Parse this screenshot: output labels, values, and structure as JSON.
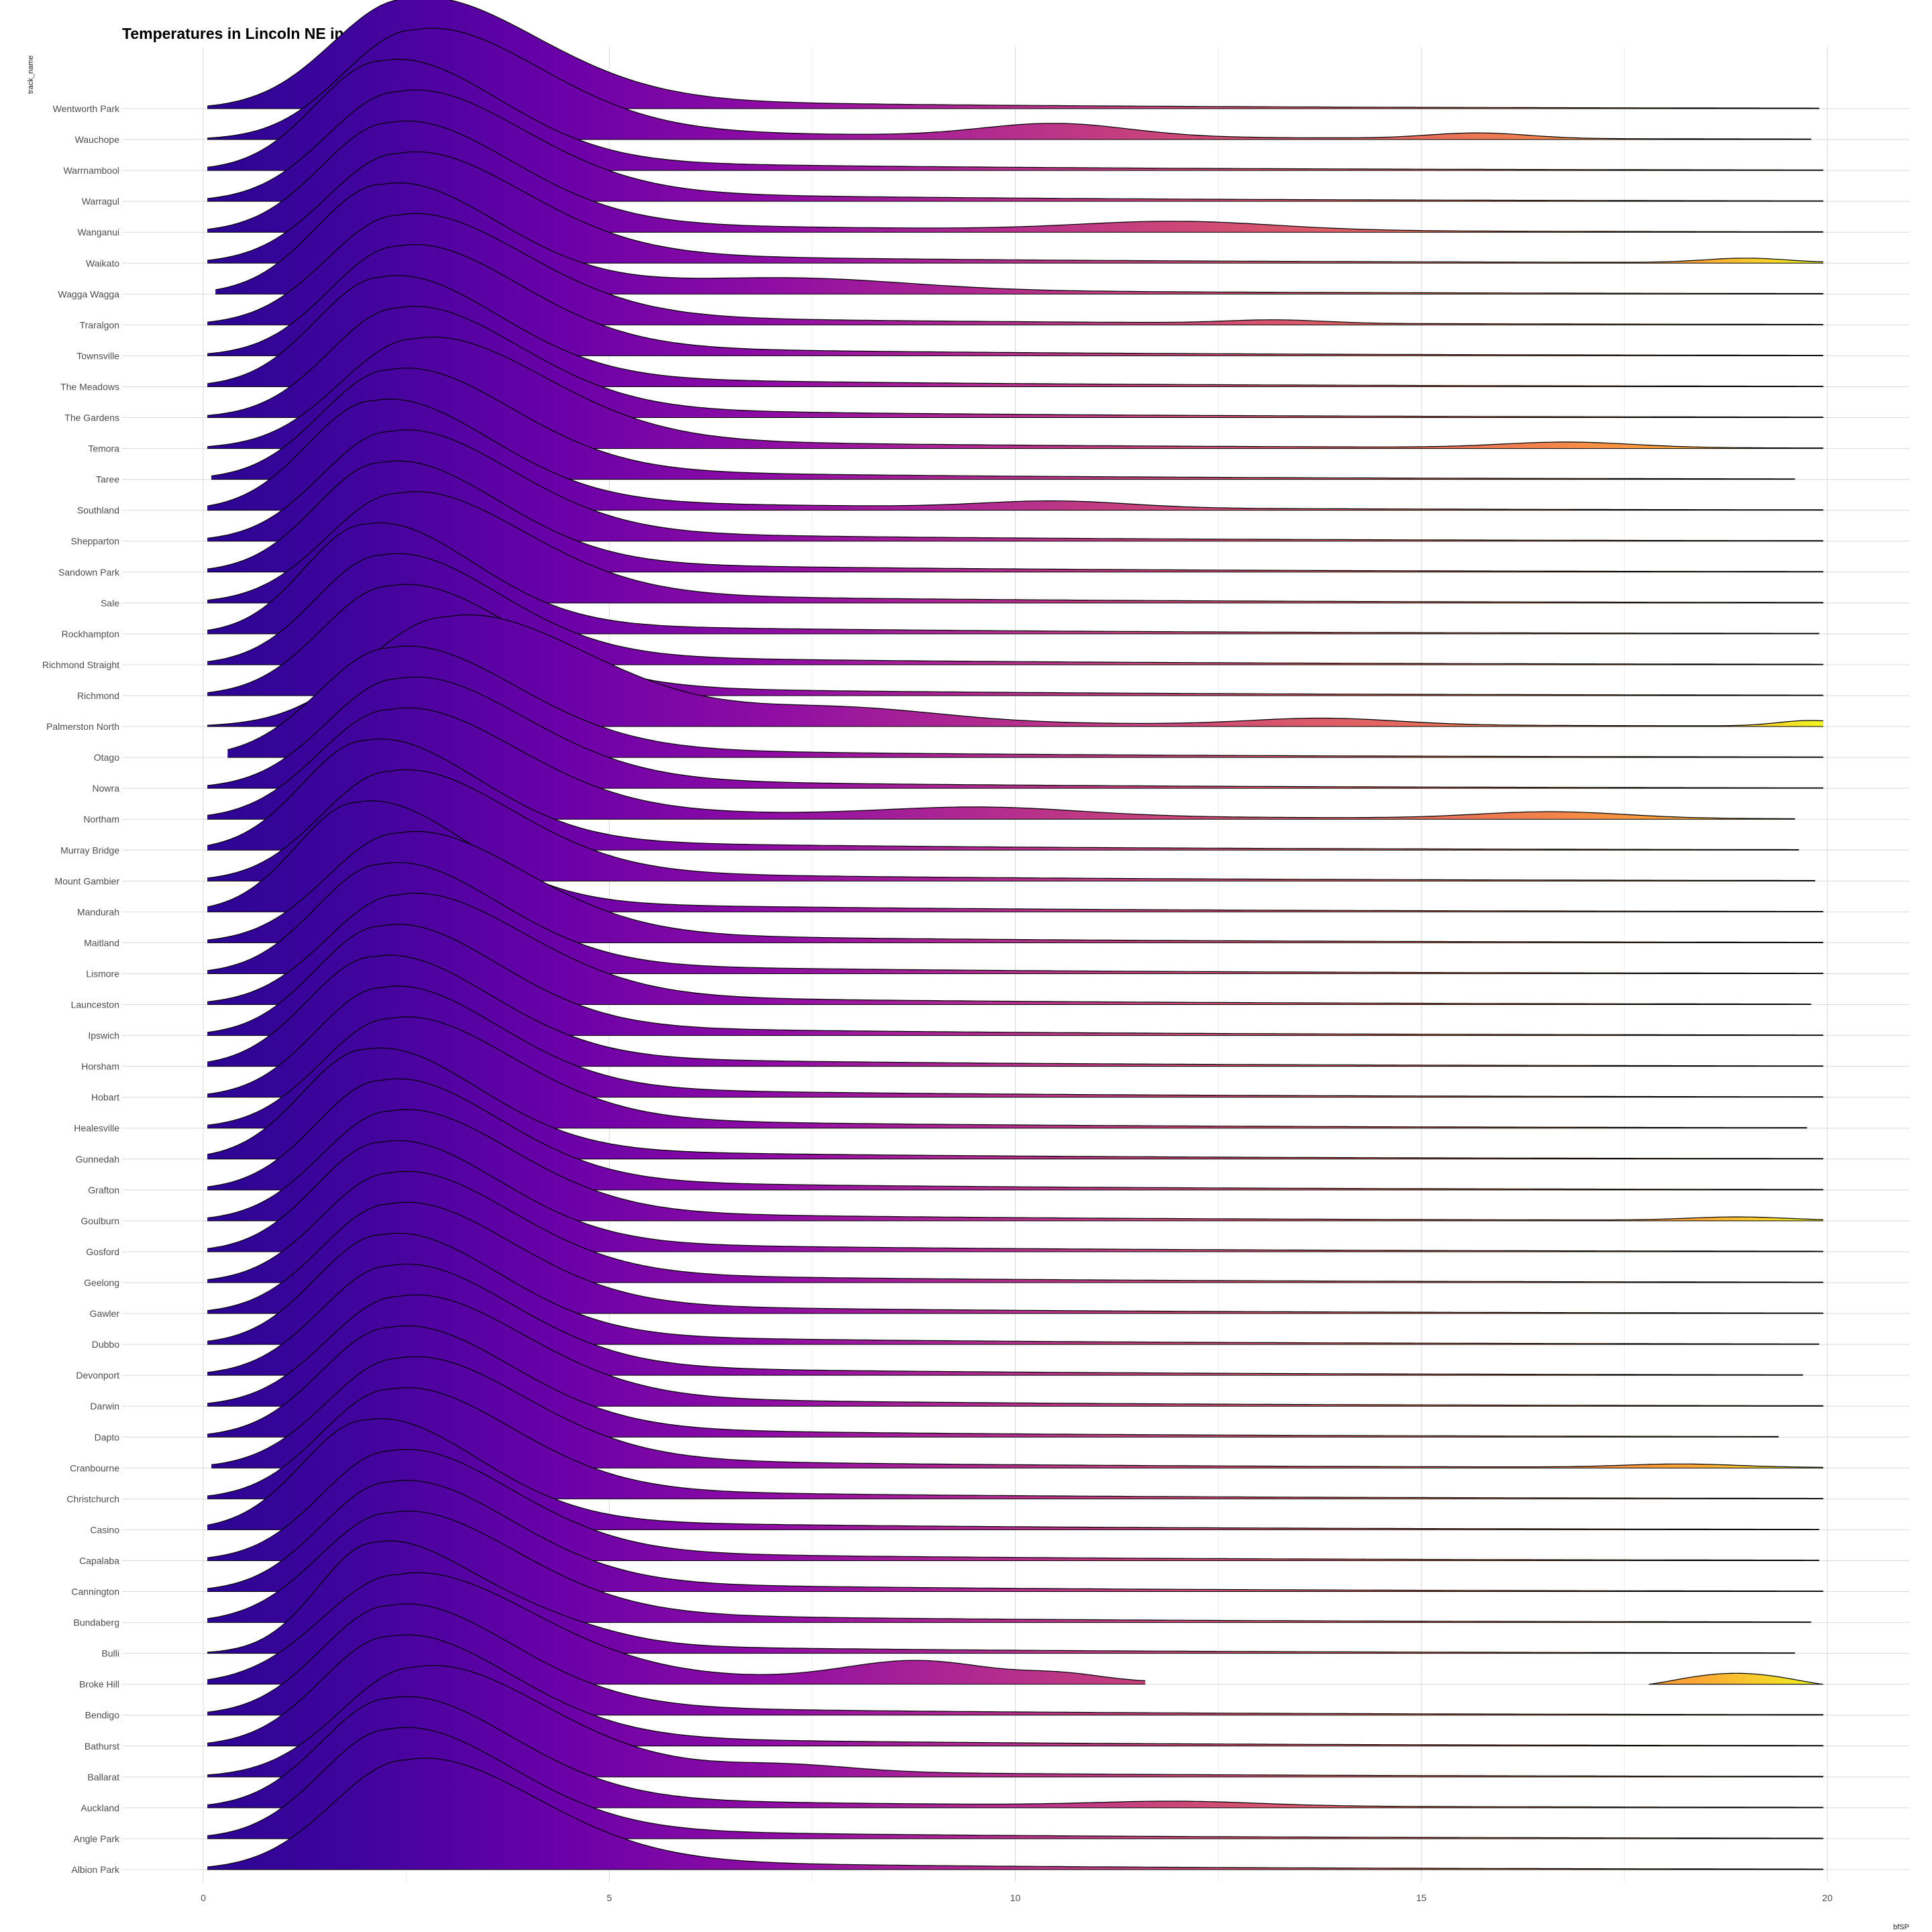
{
  "chart_data": {
    "type": "ridgeline",
    "title": "Temperatures in Lincoln NE in 2016",
    "xlabel": "bfSP",
    "ylabel": "track_name",
    "xlim": [
      0,
      20
    ],
    "xticks": [
      0,
      5,
      10,
      15,
      20
    ],
    "fill": "gradient along x (plasma colormap)",
    "colors": {
      "low": "#2b0593",
      "mid1": "#6a00a8",
      "mid2": "#b12a90",
      "mid3": "#e16462",
      "high": "#fca636",
      "end": "#f0f921"
    },
    "categories": [
      "Wentworth Park",
      "Wauchope",
      "Warrnambool",
      "Warragul",
      "Wanganui",
      "Waikato",
      "Wagga Wagga",
      "Traralgon",
      "Townsville",
      "The Meadows",
      "The Gardens",
      "Temora",
      "Taree",
      "Southland",
      "Shepparton",
      "Sandown Park",
      "Sale",
      "Rockhampton",
      "Richmond Straight",
      "Richmond",
      "Palmerston North",
      "Otago",
      "Nowra",
      "Northam",
      "Murray Bridge",
      "Mount Gambier",
      "Mandurah",
      "Maitland",
      "Lismore",
      "Launceston",
      "Ipswich",
      "Horsham",
      "Hobart",
      "Healesville",
      "Gunnedah",
      "Grafton",
      "Goulburn",
      "Gosford",
      "Geelong",
      "Gawler",
      "Dubbo",
      "Devonport",
      "Darwin",
      "Dapto",
      "Cranbourne",
      "Christchurch",
      "Casino",
      "Capalaba",
      "Cannington",
      "Bundaberg",
      "Bulli",
      "Broke Hill",
      "Bendigo",
      "Bathurst",
      "Ballarat",
      "Auckland",
      "Angle Park",
      "Albion Park"
    ],
    "series": [
      {
        "mode": 2.5,
        "spread": 1.45,
        "xmin": 0.05,
        "xmax": 19.9,
        "bumps": []
      },
      {
        "mode": 2.6,
        "spread": 1.4,
        "xmin": 0.05,
        "xmax": 19.8,
        "bumps": [
          [
            10.5,
            0.9,
            0.12
          ],
          [
            15.7,
            0.6,
            0.05
          ]
        ]
      },
      {
        "mode": 2.2,
        "spread": 1.3,
        "xmin": 0.05,
        "xmax": 19.95,
        "bumps": []
      },
      {
        "mode": 2.4,
        "spread": 1.4,
        "xmin": 0.05,
        "xmax": 19.95,
        "bumps": []
      },
      {
        "mode": 2.3,
        "spread": 1.35,
        "xmin": 0.05,
        "xmax": 19.95,
        "bumps": [
          [
            12.0,
            1.2,
            0.08
          ]
        ]
      },
      {
        "mode": 2.4,
        "spread": 1.4,
        "xmin": 0.05,
        "xmax": 19.95,
        "bumps": [
          [
            19.0,
            0.5,
            0.04
          ]
        ]
      },
      {
        "mode": 2.2,
        "spread": 1.3,
        "xmin": 0.15,
        "xmax": 19.95,
        "bumps": [
          [
            7.3,
            1.4,
            0.1
          ]
        ]
      },
      {
        "mode": 2.4,
        "spread": 1.4,
        "xmin": 0.05,
        "xmax": 19.95,
        "bumps": [
          [
            13.2,
            0.6,
            0.03
          ]
        ]
      },
      {
        "mode": 2.4,
        "spread": 1.35,
        "xmin": 0.05,
        "xmax": 19.95,
        "bumps": []
      },
      {
        "mode": 2.2,
        "spread": 1.3,
        "xmin": 0.05,
        "xmax": 19.95,
        "bumps": []
      },
      {
        "mode": 2.4,
        "spread": 1.35,
        "xmin": 0.05,
        "xmax": 19.95,
        "bumps": []
      },
      {
        "mode": 2.6,
        "spread": 1.45,
        "xmin": 0.05,
        "xmax": 19.95,
        "bumps": [
          [
            16.8,
            0.8,
            0.05
          ]
        ]
      },
      {
        "mode": 2.3,
        "spread": 1.35,
        "xmin": 0.1,
        "xmax": 19.6,
        "bumps": []
      },
      {
        "mode": 2.1,
        "spread": 1.3,
        "xmin": 0.05,
        "xmax": 19.95,
        "bumps": [
          [
            10.5,
            0.9,
            0.06
          ]
        ]
      },
      {
        "mode": 2.3,
        "spread": 1.35,
        "xmin": 0.05,
        "xmax": 19.95,
        "bumps": []
      },
      {
        "mode": 2.2,
        "spread": 1.3,
        "xmin": 0.05,
        "xmax": 19.95,
        "bumps": []
      },
      {
        "mode": 2.4,
        "spread": 1.4,
        "xmin": 0.05,
        "xmax": 19.95,
        "bumps": []
      },
      {
        "mode": 2.0,
        "spread": 1.2,
        "xmin": 0.05,
        "xmax": 19.9,
        "bumps": []
      },
      {
        "mode": 2.2,
        "spread": 1.3,
        "xmin": 0.05,
        "xmax": 19.95,
        "bumps": []
      },
      {
        "mode": 2.3,
        "spread": 1.35,
        "xmin": 0.05,
        "xmax": 19.95,
        "bumps": []
      },
      {
        "mode": 3.0,
        "spread": 1.6,
        "xmin": 0.05,
        "xmax": 19.95,
        "bumps": [
          [
            7.9,
            1.2,
            0.12
          ],
          [
            13.8,
            0.9,
            0.06
          ],
          [
            19.8,
            0.4,
            0.05
          ]
        ]
      },
      {
        "mode": 2.3,
        "spread": 1.4,
        "xmin": 0.3,
        "xmax": 19.95,
        "bumps": []
      },
      {
        "mode": 2.4,
        "spread": 1.4,
        "xmin": 0.05,
        "xmax": 19.95,
        "bumps": []
      },
      {
        "mode": 2.3,
        "spread": 1.4,
        "xmin": 0.05,
        "xmax": 19.6,
        "bumps": [
          [
            9.6,
            1.2,
            0.08
          ],
          [
            16.6,
            0.9,
            0.06
          ]
        ]
      },
      {
        "mode": 2.0,
        "spread": 1.25,
        "xmin": 0.05,
        "xmax": 19.65,
        "bumps": []
      },
      {
        "mode": 2.3,
        "spread": 1.35,
        "xmin": 0.05,
        "xmax": 19.85,
        "bumps": []
      },
      {
        "mode": 1.9,
        "spread": 1.2,
        "xmin": 0.05,
        "xmax": 19.95,
        "bumps": []
      },
      {
        "mode": 2.4,
        "spread": 1.4,
        "xmin": 0.05,
        "xmax": 19.95,
        "bumps": []
      },
      {
        "mode": 2.2,
        "spread": 1.3,
        "xmin": 0.05,
        "xmax": 19.95,
        "bumps": []
      },
      {
        "mode": 2.4,
        "spread": 1.4,
        "xmin": 0.05,
        "xmax": 19.8,
        "bumps": []
      },
      {
        "mode": 2.2,
        "spread": 1.3,
        "xmin": 0.05,
        "xmax": 19.95,
        "bumps": []
      },
      {
        "mode": 2.1,
        "spread": 1.3,
        "xmin": 0.05,
        "xmax": 19.95,
        "bumps": []
      },
      {
        "mode": 2.2,
        "spread": 1.3,
        "xmin": 0.05,
        "xmax": 19.95,
        "bumps": []
      },
      {
        "mode": 2.3,
        "spread": 1.35,
        "xmin": 0.05,
        "xmax": 19.75,
        "bumps": []
      },
      {
        "mode": 2.0,
        "spread": 1.25,
        "xmin": 0.05,
        "xmax": 19.95,
        "bumps": []
      },
      {
        "mode": 2.2,
        "spread": 1.3,
        "xmin": 0.05,
        "xmax": 19.95,
        "bumps": []
      },
      {
        "mode": 2.3,
        "spread": 1.35,
        "xmin": 0.05,
        "xmax": 19.95,
        "bumps": [
          [
            18.9,
            0.6,
            0.03
          ]
        ]
      },
      {
        "mode": 2.2,
        "spread": 1.3,
        "xmin": 0.05,
        "xmax": 19.95,
        "bumps": []
      },
      {
        "mode": 2.3,
        "spread": 1.35,
        "xmin": 0.05,
        "xmax": 19.95,
        "bumps": []
      },
      {
        "mode": 2.3,
        "spread": 1.35,
        "xmin": 0.05,
        "xmax": 19.95,
        "bumps": []
      },
      {
        "mode": 2.2,
        "spread": 1.3,
        "xmin": 0.05,
        "xmax": 19.9,
        "bumps": []
      },
      {
        "mode": 2.3,
        "spread": 1.35,
        "xmin": 0.05,
        "xmax": 19.7,
        "bumps": []
      },
      {
        "mode": 2.4,
        "spread": 1.4,
        "xmin": 0.05,
        "xmax": 19.95,
        "bumps": []
      },
      {
        "mode": 2.3,
        "spread": 1.35,
        "xmin": 0.05,
        "xmax": 19.4,
        "bumps": []
      },
      {
        "mode": 2.4,
        "spread": 1.4,
        "xmin": 0.1,
        "xmax": 19.95,
        "bumps": [
          [
            18.2,
            0.7,
            0.03
          ]
        ]
      },
      {
        "mode": 2.3,
        "spread": 1.35,
        "xmin": 0.05,
        "xmax": 19.95,
        "bumps": []
      },
      {
        "mode": 2.0,
        "spread": 1.25,
        "xmin": 0.05,
        "xmax": 19.9,
        "bumps": []
      },
      {
        "mode": 2.3,
        "spread": 1.35,
        "xmin": 0.05,
        "xmax": 19.9,
        "bumps": []
      },
      {
        "mode": 2.3,
        "spread": 1.35,
        "xmin": 0.05,
        "xmax": 19.95,
        "bumps": []
      },
      {
        "mode": 2.3,
        "spread": 1.4,
        "xmin": 0.05,
        "xmax": 19.8,
        "bumps": []
      },
      {
        "mode": 2.1,
        "spread": 1.1,
        "xmin": 0.05,
        "xmax": 19.6,
        "bumps": [
          [
            4.2,
            0.9,
            0.15
          ]
        ]
      },
      {
        "mode": 2.4,
        "spread": 1.5,
        "xmin": 0.05,
        "xmax": 11.6,
        "bumps": [
          [
            8.8,
            0.9,
            0.18
          ],
          [
            10.6,
            0.5,
            0.06
          ]
        ],
        "tail": [
          17.8,
          19.95,
          0.1
        ]
      },
      {
        "mode": 2.3,
        "spread": 1.35,
        "xmin": 0.05,
        "xmax": 19.95,
        "bumps": []
      },
      {
        "mode": 2.3,
        "spread": 1.35,
        "xmin": 0.05,
        "xmax": 19.95,
        "bumps": []
      },
      {
        "mode": 2.6,
        "spread": 1.45,
        "xmin": 0.05,
        "xmax": 19.95,
        "bumps": [
          [
            7.2,
            0.8,
            0.06
          ]
        ]
      },
      {
        "mode": 2.3,
        "spread": 1.35,
        "xmin": 0.05,
        "xmax": 19.95,
        "bumps": [
          [
            12.0,
            1.0,
            0.04
          ]
        ]
      },
      {
        "mode": 2.3,
        "spread": 1.35,
        "xmin": 0.05,
        "xmax": 19.95,
        "bumps": []
      },
      {
        "mode": 2.5,
        "spread": 1.45,
        "xmin": 0.05,
        "xmax": 19.95,
        "bumps": []
      }
    ]
  }
}
